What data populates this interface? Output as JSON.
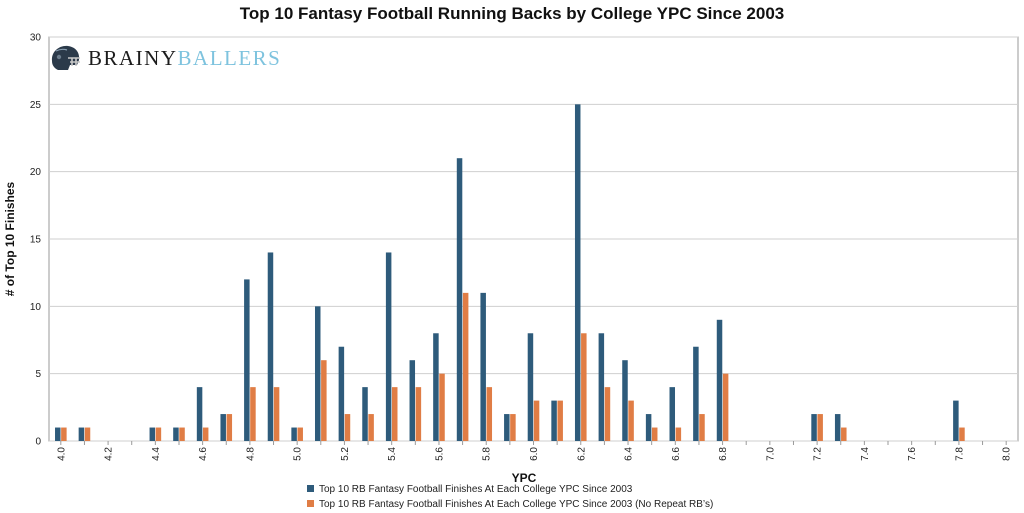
{
  "logo": {
    "part1": "BRAINY",
    "part2": "BALLERS"
  },
  "colors": {
    "series1": "#2e5b7b",
    "series2": "#e07d45",
    "grid": "#cfcfcf",
    "axis": "#9a9a9a"
  },
  "chart_data": {
    "type": "bar",
    "title": "Top 10 Fantasy Football Running Backs by College YPC Since 2003",
    "xlabel": "YPC",
    "ylabel": "# of Top 10 Finishes",
    "ylim": [
      0,
      30
    ],
    "yticks": [
      "0",
      "5",
      "10",
      "15",
      "20",
      "25",
      "30"
    ],
    "grid": true,
    "legend_position": "bottom",
    "categories": [
      "4.0",
      "4.1",
      "4.2",
      "4.3",
      "4.4",
      "4.5",
      "4.6",
      "4.7",
      "4.8",
      "4.9",
      "5.0",
      "5.1",
      "5.2",
      "5.3",
      "5.4",
      "5.5",
      "5.6",
      "5.7",
      "5.8",
      "5.9",
      "6.0",
      "6.1",
      "6.2",
      "6.3",
      "6.4",
      "6.5",
      "6.6",
      "6.7",
      "6.8",
      "6.9",
      "7.0",
      "7.1",
      "7.2",
      "7.3",
      "7.4",
      "7.5",
      "7.6",
      "7.7",
      "7.8",
      "7.9",
      "8.0"
    ],
    "tick_labels": [
      "4.0",
      "",
      "4.2",
      "",
      "4.4",
      "",
      "4.6",
      "",
      "4.8",
      "",
      "5.0",
      "",
      "5.2",
      "",
      "5.4",
      "",
      "5.6",
      "",
      "5.8",
      "",
      "6.0",
      "",
      "6.2",
      "",
      "6.4",
      "",
      "6.6",
      "",
      "6.8",
      "",
      "7.0",
      "",
      "7.2",
      "",
      "7.4",
      "",
      "7.6",
      "",
      "7.8",
      "",
      "8.0"
    ],
    "series": [
      {
        "name": "Top 10 RB Fantasy Football Finishes At Each College YPC Since 2003",
        "values": [
          1,
          1,
          0,
          0,
          1,
          1,
          4,
          2,
          12,
          14,
          1,
          10,
          7,
          4,
          14,
          6,
          8,
          21,
          11,
          2,
          8,
          3,
          25,
          8,
          6,
          2,
          4,
          7,
          9,
          0,
          0,
          0,
          2,
          2,
          0,
          0,
          0,
          0,
          3,
          0,
          0
        ]
      },
      {
        "name": "Top 10 RB Fantasy Football Finishes At Each College YPC Since 2003 (No Repeat RB’s)",
        "values": [
          1,
          1,
          0,
          0,
          1,
          1,
          1,
          2,
          4,
          4,
          1,
          6,
          2,
          2,
          4,
          4,
          5,
          11,
          4,
          2,
          3,
          3,
          8,
          4,
          3,
          1,
          1,
          2,
          5,
          0,
          0,
          0,
          2,
          1,
          0,
          0,
          0,
          0,
          1,
          0,
          0
        ]
      }
    ]
  }
}
